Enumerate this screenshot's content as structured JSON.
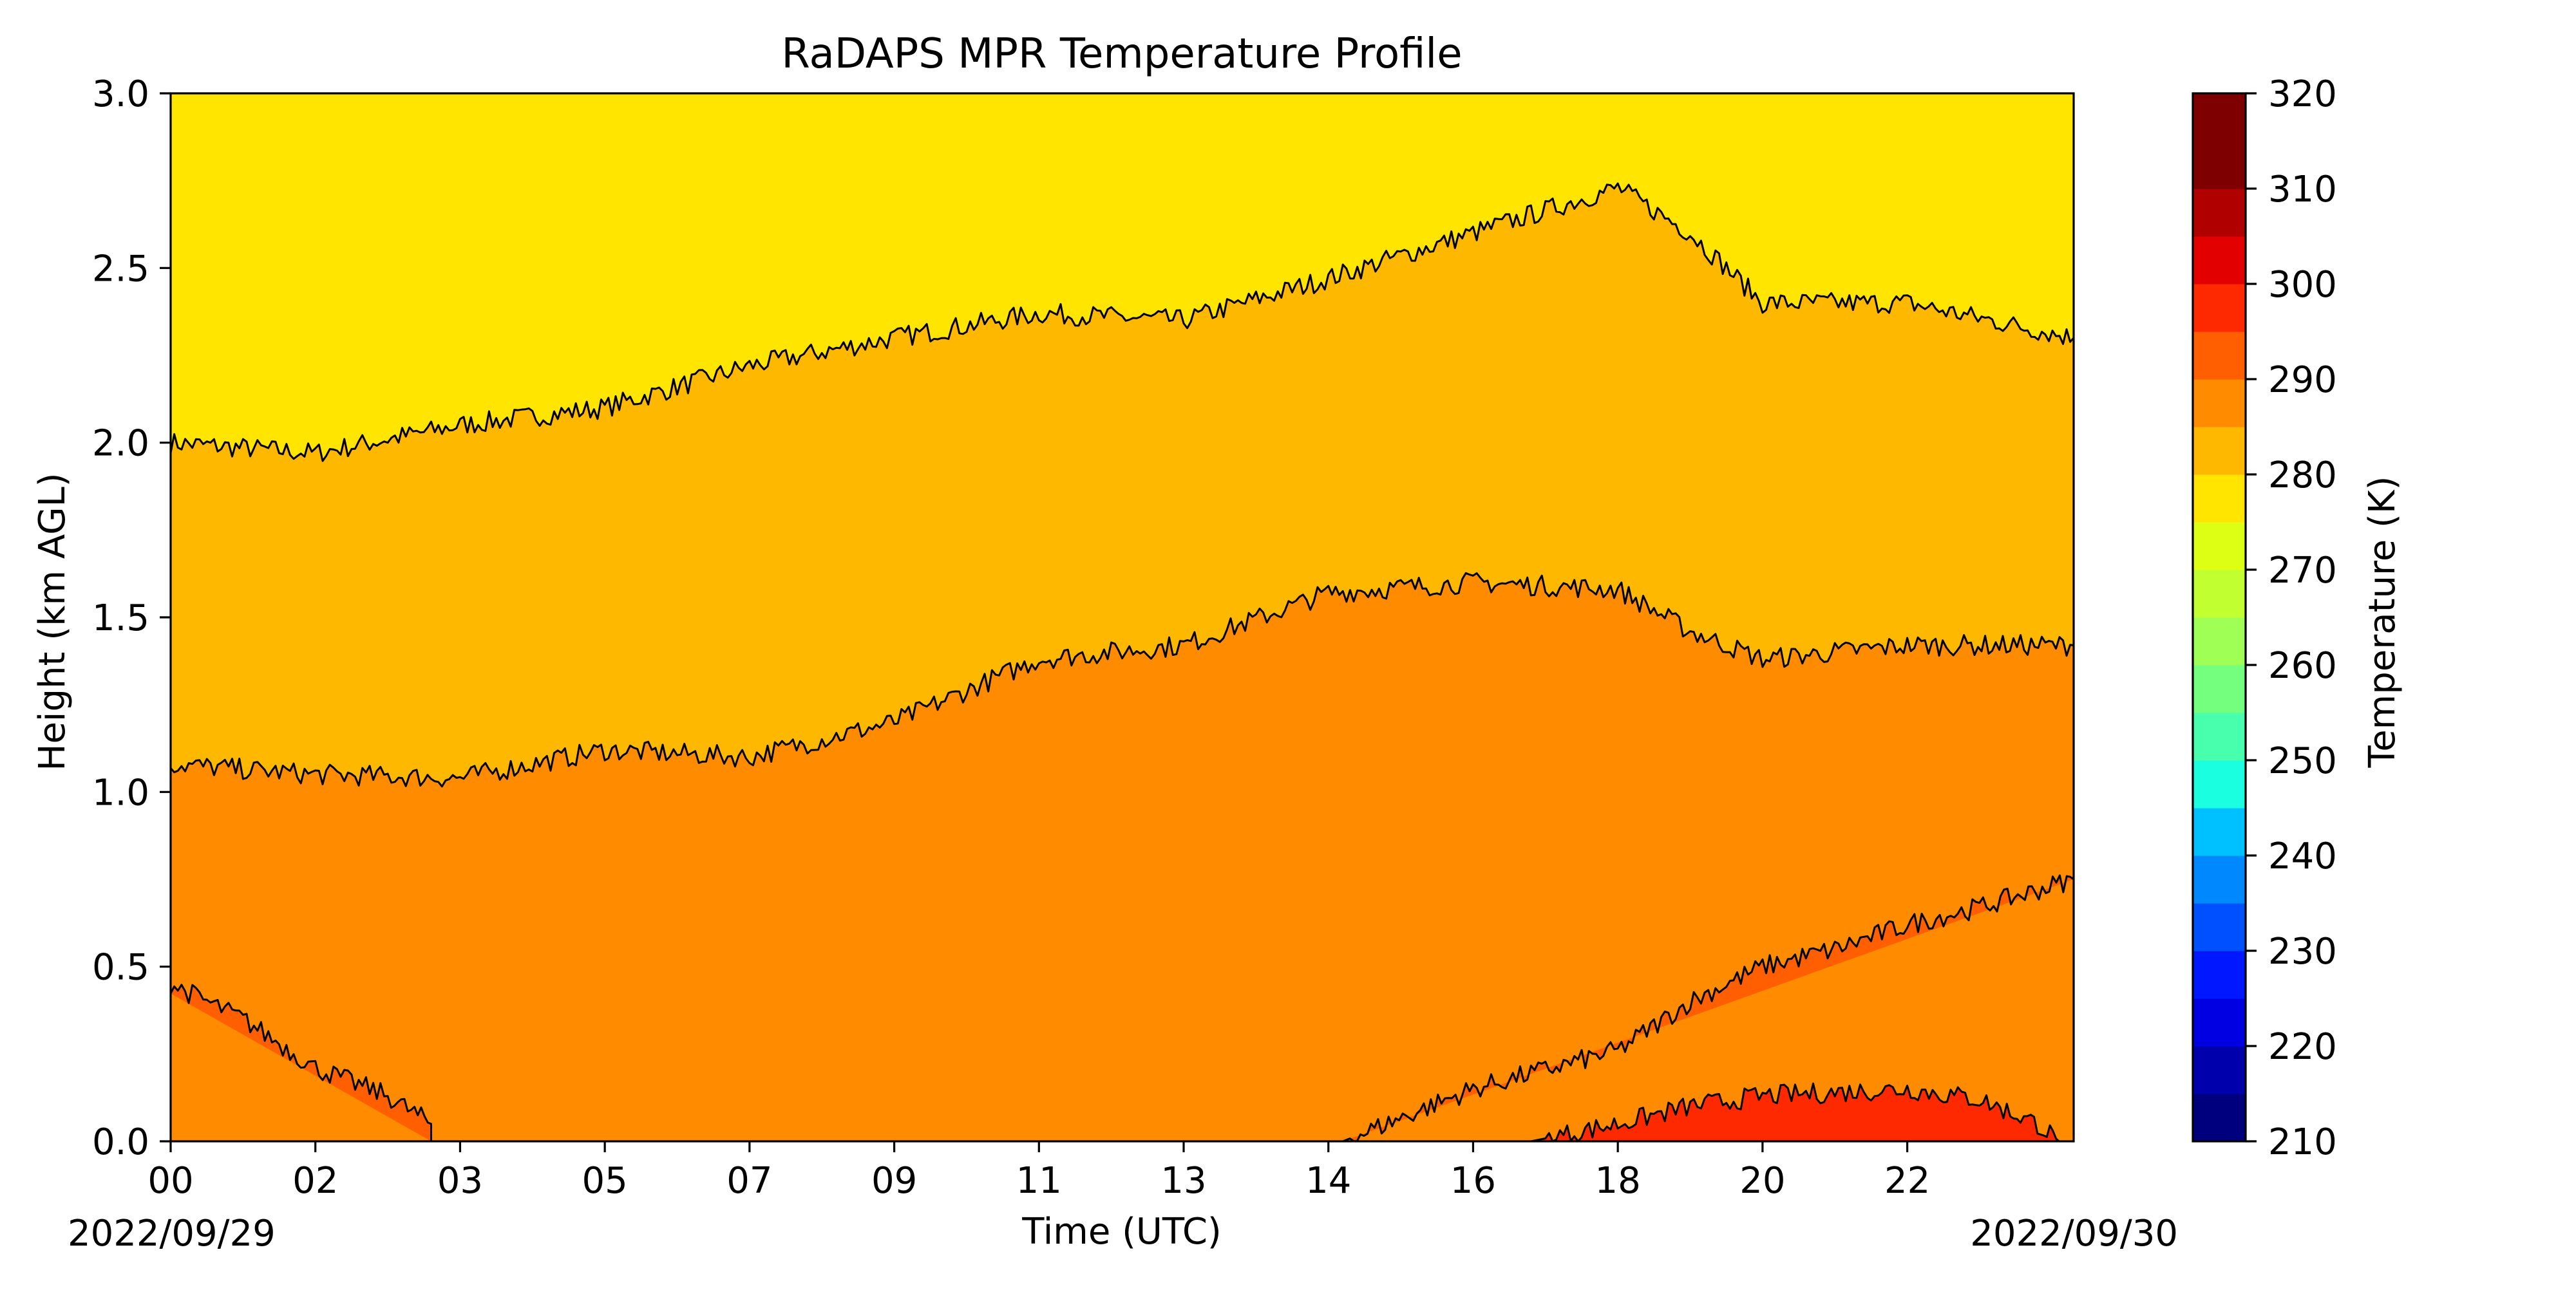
{
  "chart_data": {
    "type": "heatmap",
    "subtype": "filled-contour",
    "title": "RaDAPS MPR Temperature Profile",
    "xlabel": "Time (UTC)",
    "ylabel": "Height (km AGL)",
    "date_start": "2022/09/29",
    "date_end": "2022/09/30",
    "x_tick_labels": [
      "00",
      "02",
      "03",
      "05",
      "07",
      "09",
      "11",
      "13",
      "14",
      "16",
      "18",
      "20",
      "22"
    ],
    "x_tick_hours": [
      0,
      2,
      4,
      6,
      8,
      10,
      12,
      14,
      16,
      18,
      20,
      22,
      24
    ],
    "xlim_hours": [
      0,
      26.3
    ],
    "ylim": [
      0,
      3
    ],
    "y_ticks": [
      0.0,
      0.5,
      1.0,
      1.5,
      2.0,
      2.5,
      3.0
    ],
    "y_tick_labels": [
      "0.0",
      "0.5",
      "1.0",
      "1.5",
      "2.0",
      "2.5",
      "3.0"
    ],
    "colorbar": {
      "label": "Temperature (K)",
      "range": [
        210,
        320
      ],
      "step": 5,
      "tick_labels": [
        "210",
        "220",
        "230",
        "240",
        "250",
        "260",
        "270",
        "280",
        "290",
        "300",
        "310",
        "320"
      ],
      "tick_values": [
        210,
        220,
        230,
        240,
        250,
        260,
        270,
        280,
        290,
        300,
        310,
        320
      ],
      "colormap": "jet",
      "colors": [
        "#00007f",
        "#0000ad",
        "#0000e3",
        "#0017ff",
        "#0050ff",
        "#0089ff",
        "#00c1ff",
        "#1affe0",
        "#48ffad",
        "#74ff7e",
        "#a0ff54",
        "#c1ff30",
        "#ddff14",
        "#ffe500",
        "#ffb800",
        "#ff8c00",
        "#ff5f00",
        "#ff2900",
        "#e30000",
        "#b00000",
        "#7f0000",
        "#7f0000"
      ]
    },
    "contour_boundaries": [
      {
        "level": 280,
        "height_km": [
          [
            0,
            2.0
          ],
          [
            2,
            1.97
          ],
          [
            4,
            2.05
          ],
          [
            6,
            2.1
          ],
          [
            8,
            2.22
          ],
          [
            10,
            2.3
          ],
          [
            12,
            2.37
          ],
          [
            14,
            2.35
          ],
          [
            16,
            2.47
          ],
          [
            18,
            2.6
          ],
          [
            20,
            2.73
          ],
          [
            21,
            2.6
          ],
          [
            22,
            2.4
          ],
          [
            24,
            2.4
          ],
          [
            26.3,
            2.3
          ]
        ]
      },
      {
        "level": 285,
        "height_km": [
          [
            0,
            1.08
          ],
          [
            2,
            1.05
          ],
          [
            4,
            1.04
          ],
          [
            6,
            1.12
          ],
          [
            8,
            1.1
          ],
          [
            10,
            1.2
          ],
          [
            12,
            1.38
          ],
          [
            14,
            1.42
          ],
          [
            16,
            1.57
          ],
          [
            18,
            1.6
          ],
          [
            20,
            1.58
          ],
          [
            21,
            1.46
          ],
          [
            22,
            1.38
          ],
          [
            24,
            1.42
          ],
          [
            26.3,
            1.42
          ]
        ]
      },
      {
        "level": 290,
        "height_km": [
          [
            0,
            0.45
          ],
          [
            1,
            0.35
          ],
          [
            2,
            0.21
          ],
          [
            3,
            0.13
          ],
          [
            3.6,
            0.05
          ],
          [
            3.6,
            0
          ]
        ],
        "open_bottom": true
      },
      {
        "level": 290,
        "height_km": [
          [
            16.2,
            0
          ],
          [
            18,
            0.15
          ],
          [
            20,
            0.26
          ],
          [
            21,
            0.4
          ],
          [
            22,
            0.5
          ],
          [
            23,
            0.55
          ],
          [
            24,
            0.62
          ],
          [
            25,
            0.67
          ],
          [
            26.3,
            0.75
          ]
        ],
        "region": "lower-right"
      },
      {
        "level": 295,
        "height_km": [
          [
            18.8,
            0
          ],
          [
            20,
            0.05
          ],
          [
            21,
            0.1
          ],
          [
            22,
            0.13
          ],
          [
            23,
            0.14
          ],
          [
            24,
            0.15
          ],
          [
            25,
            0.12
          ],
          [
            25.8,
            0.05
          ],
          [
            26.1,
            0
          ]
        ],
        "region": "lower-right"
      }
    ]
  }
}
